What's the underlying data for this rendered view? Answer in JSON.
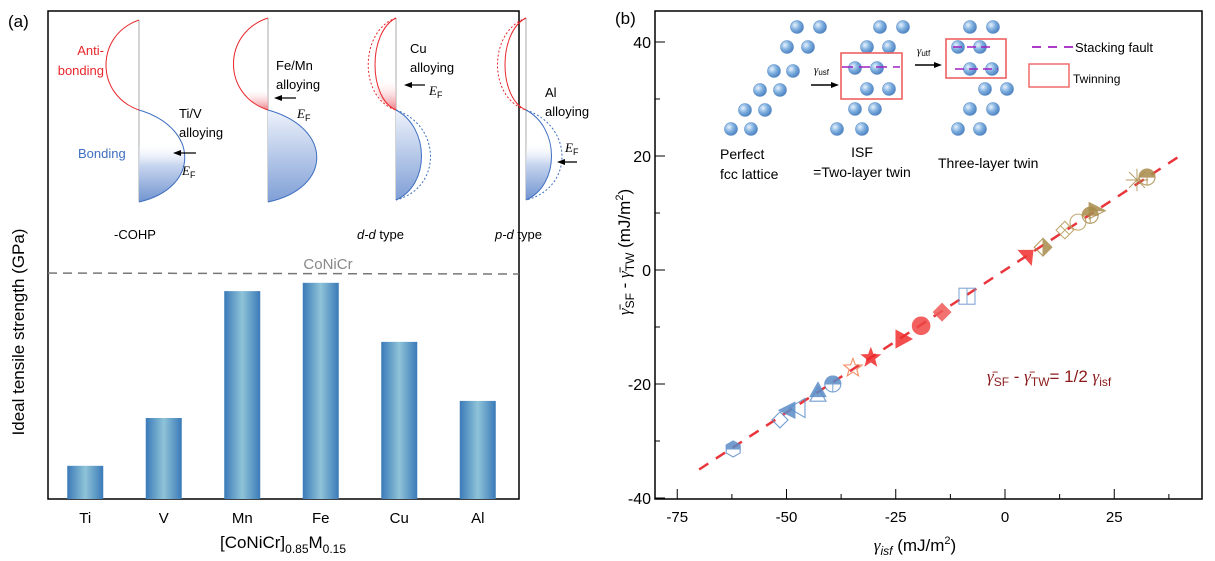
{
  "figure": {
    "panel_a_label": "(a)",
    "panel_b_label": "(b)"
  },
  "chart_data": [
    {
      "id": "panel-a",
      "type": "bar",
      "title": "",
      "xlabel_main": "[CoNiCr]",
      "xlabel_sub1": "0.85",
      "xlabel_mid": "M",
      "xlabel_sub2": "0.15",
      "ylabel": "Ideal tensile strength (GPa)",
      "yticks_shown": false,
      "value_units": "relative (fraction of axis height, no tick labels shown)",
      "categories": [
        "Ti",
        "V",
        "Mn",
        "Fe",
        "Cu",
        "Al"
      ],
      "values": [
        0.068,
        0.166,
        0.426,
        0.443,
        0.322,
        0.201
      ],
      "ylim": [
        0,
        1
      ],
      "reference_line": {
        "label": "CoNiCr",
        "value": 0.463,
        "style": "dashed"
      },
      "bar_color_edge": "#3a7ab8",
      "bar_color_center": "#8fc3d8",
      "inset": {
        "cohp_label": "-COHP",
        "antibonding_label": [
          "Anti-",
          "bonding"
        ],
        "bonding_label": "Bonding",
        "schemes": [
          {
            "alloying": [
              "Ti/V",
              "alloying"
            ],
            "ef": "E",
            "ef_sub": "F",
            "type_label": "-COHP",
            "ef_level": "bonding-mid"
          },
          {
            "alloying": [
              "Fe/Mn",
              "alloying"
            ],
            "ef": "E",
            "ef_sub": "F",
            "type_label": "",
            "ef_level": "node"
          },
          {
            "alloying": [
              "Cu",
              "alloying"
            ],
            "ef": "E",
            "ef_sub": "F",
            "type_label_it": "d-d",
            "type_label_rest": " type",
            "ef_level": "antibonding-low"
          },
          {
            "alloying": [
              "Al",
              "alloying"
            ],
            "ef": "E",
            "ef_sub": "F",
            "type_label_it": "p-d",
            "type_label_rest": " type",
            "ef_level": "bonding-low"
          }
        ],
        "antibonding_color": "#e8262b",
        "bonding_color": "#3f6fc0"
      }
    },
    {
      "id": "panel-b",
      "type": "scatter",
      "title": "",
      "xlabel_sym": "γ",
      "xlabel_sub": "isf",
      "xlabel_rest": " (mJ/m",
      "xlabel_sup": "2",
      "xlabel_end": ")",
      "ylabel": "γ̄SF - γ̄TW (mJ/m²)",
      "xlim": [
        -80,
        46
      ],
      "ylim": [
        -40,
        45
      ],
      "xticks": [
        -75,
        -50,
        -25,
        0,
        25
      ],
      "xticks_minor": [
        -62.5,
        -37.5,
        -12.5,
        12.5,
        37.5
      ],
      "yticks": [
        -40,
        -20,
        0,
        20,
        40
      ],
      "yticks_minor": [
        -30,
        -10,
        10,
        30
      ],
      "grid": false,
      "fit_line": {
        "slope": 0.5,
        "intercept": 0,
        "x_range": [
          -70,
          41
        ],
        "color": "#e8363c",
        "style": "dashed"
      },
      "equation": {
        "lhs1": "γ̄",
        "lhs1_sub": "SF",
        "minus": " - ",
        "lhs2": "γ̄",
        "lhs2_sub": "TW",
        "rhs": "= 1/2 ",
        "rhs_sym": "γ",
        "rhs_sub": "isf",
        "color": "#8b1a1a"
      },
      "points": [
        {
          "x": -62.2,
          "y": -31.4,
          "marker": "hexagon-half",
          "color": "#5b8cc7"
        },
        {
          "x": -51.5,
          "y": -26.3,
          "marker": "diamond-open",
          "color": "#5b8cc7"
        },
        {
          "x": -49.9,
          "y": -24.6,
          "marker": "triangle-left-filled",
          "color": "#5b8cc7"
        },
        {
          "x": -47.6,
          "y": -24.2,
          "marker": "triangle-left-open",
          "color": "#5b8cc7"
        },
        {
          "x": -42.8,
          "y": -21.1,
          "marker": "triangle-up-filled",
          "color": "#5b8cc7"
        },
        {
          "x": -42.8,
          "y": -21.9,
          "marker": "triangle-up-open",
          "color": "#5b8cc7"
        },
        {
          "x": -39.4,
          "y": -20.0,
          "marker": "circle-half",
          "color": "#5b8cc7"
        },
        {
          "x": -34.8,
          "y": -17.2,
          "marker": "star-open",
          "color": "#f07a4a"
        },
        {
          "x": -30.7,
          "y": -15.4,
          "marker": "star-filled",
          "color": "#f02a2a"
        },
        {
          "x": -23.3,
          "y": -12.1,
          "marker": "triangle-right-filled",
          "color": "#f03030"
        },
        {
          "x": -19.2,
          "y": -9.8,
          "marker": "circle-filled",
          "color": "#f04545"
        },
        {
          "x": -14.4,
          "y": -7.4,
          "marker": "diamond-filled",
          "color": "#f05a5a"
        },
        {
          "x": -8.7,
          "y": -4.6,
          "marker": "square-split-open",
          "color": "#6d9ad0"
        },
        {
          "x": 5.3,
          "y": 2.6,
          "marker": "triangle-down-filled",
          "color": "#f03030"
        },
        {
          "x": 8.7,
          "y": 4.0,
          "marker": "diamond-half",
          "color": "#a88b4a"
        },
        {
          "x": 13.7,
          "y": 7.0,
          "marker": "square-x-open",
          "color": "#b89a5a"
        },
        {
          "x": 16.7,
          "y": 8.4,
          "marker": "circle-open",
          "color": "#b89a5a"
        },
        {
          "x": 19.5,
          "y": 9.6,
          "marker": "circle-half",
          "color": "#a88b4a"
        },
        {
          "x": 21.1,
          "y": 10.4,
          "marker": "triangle-right-half",
          "color": "#a88b4a"
        },
        {
          "x": 30.2,
          "y": 15.8,
          "marker": "asterisk",
          "color": "#a88b4a"
        },
        {
          "x": 32.5,
          "y": 16.3,
          "marker": "circle-half",
          "color": "#a88b4a"
        }
      ],
      "inset": {
        "labels": {
          "perfect": [
            "Perfect",
            "fcc lattice"
          ],
          "isf": [
            "ISF",
            "=Two-layer twin"
          ],
          "three": "Three-layer twin",
          "gamma_usf": "γ",
          "gamma_usf_sub": "usf",
          "gamma_utf": "γ",
          "gamma_utf_sub": "utf"
        },
        "legend": [
          {
            "label": "Stacking fault",
            "symbol": "dashed-line",
            "color": "#a020c0"
          },
          {
            "label": "Twinning",
            "symbol": "rectangle",
            "color": "#f06060"
          }
        ],
        "atom_color": "#7aaee0"
      }
    }
  ]
}
